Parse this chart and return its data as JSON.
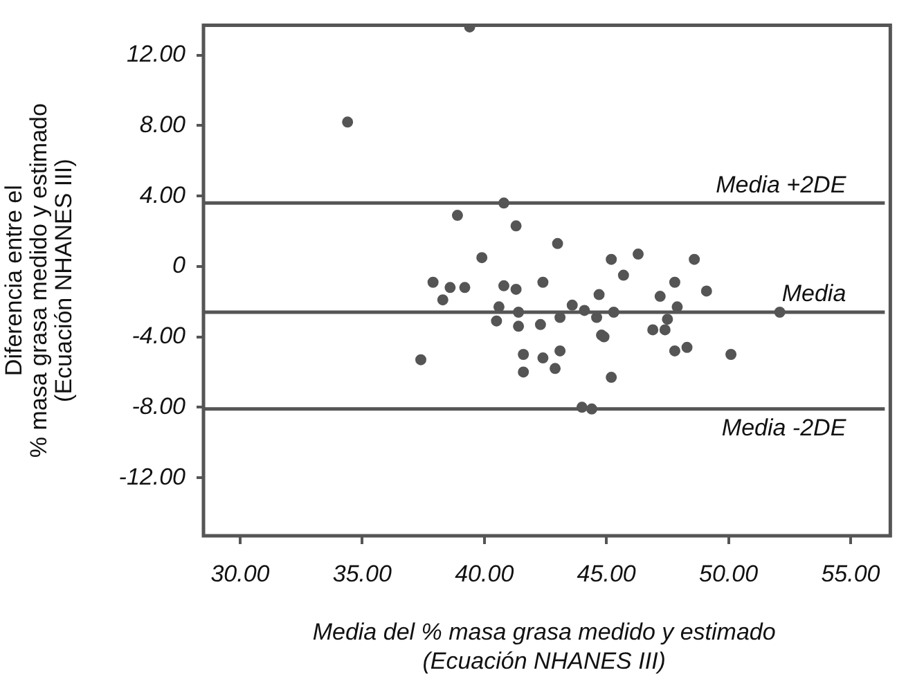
{
  "chart_data": {
    "type": "scatter",
    "xlabel": "Media del % masa grasa medido y estimado\n(Ecuación NHANES III)",
    "ylabel": "Diferencia entre el\n% masa grasa medido y estimado\n(Ecuación NHANES III)",
    "x": [
      39.4,
      34.4,
      40.8,
      38.9,
      41.3,
      43.0,
      39.9,
      45.2,
      46.3,
      48.6,
      45.7,
      37.9,
      38.6,
      39.2,
      38.3,
      40.8,
      41.3,
      42.4,
      47.8,
      49.1,
      44.7,
      47.2,
      47.9,
      43.6,
      44.1,
      40.6,
      41.4,
      45.3,
      52.1,
      40.5,
      41.4,
      42.3,
      43.1,
      44.6,
      47.5,
      46.9,
      47.4,
      44.8,
      44.9,
      37.4,
      41.6,
      42.4,
      43.1,
      47.8,
      48.3,
      50.1,
      41.6,
      42.9,
      45.2,
      44.0,
      44.4
    ],
    "values": [
      13.6,
      8.2,
      3.6,
      2.9,
      2.3,
      1.3,
      0.5,
      0.4,
      0.7,
      0.4,
      -0.5,
      -0.9,
      -1.2,
      -1.2,
      -1.9,
      -1.1,
      -1.3,
      -0.9,
      -0.9,
      -1.4,
      -1.6,
      -1.7,
      -2.3,
      -2.2,
      -2.5,
      -2.3,
      -2.6,
      -2.6,
      -2.6,
      -3.1,
      -3.4,
      -3.3,
      -2.9,
      -2.9,
      -3.0,
      -3.6,
      -3.6,
      -3.9,
      -4.0,
      -5.3,
      -5.0,
      -5.2,
      -4.8,
      -4.8,
      -4.6,
      -5.0,
      -6.0,
      -5.8,
      -6.3,
      -8.0,
      -8.1
    ],
    "color": "#555555",
    "marker": "circle",
    "xlim": [
      28.5,
      56.4
    ],
    "xticks": [
      {
        "value": 30,
        "label": "30.00"
      },
      {
        "value": 35,
        "label": "35.00"
      },
      {
        "value": 40,
        "label": "40.00"
      },
      {
        "value": 45,
        "label": "45.00"
      },
      {
        "value": 50,
        "label": "50.00"
      },
      {
        "value": 55,
        "label": "55.00"
      }
    ],
    "ylim": [
      -15.3,
      13.7
    ],
    "yticks": [
      {
        "value": -12,
        "label": "-12.00"
      },
      {
        "value": -8,
        "label": "-8.00"
      },
      {
        "value": -4,
        "label": "-4.00"
      },
      0,
      {
        "value": 4,
        "label": "4.00"
      },
      {
        "value": 8,
        "label": "8.00"
      },
      {
        "value": 12,
        "label": "12.00"
      }
    ],
    "ref_lines": [
      {
        "axis": "y",
        "value": 3.6,
        "label": "Media +2DE",
        "color": "#555555"
      },
      {
        "axis": "y",
        "value": -2.6,
        "label": "Media",
        "color": "#555555"
      },
      {
        "axis": "y",
        "value": -8.1,
        "label": "Media -2DE",
        "color": "#555555"
      }
    ],
    "grid": false,
    "legend": false
  }
}
